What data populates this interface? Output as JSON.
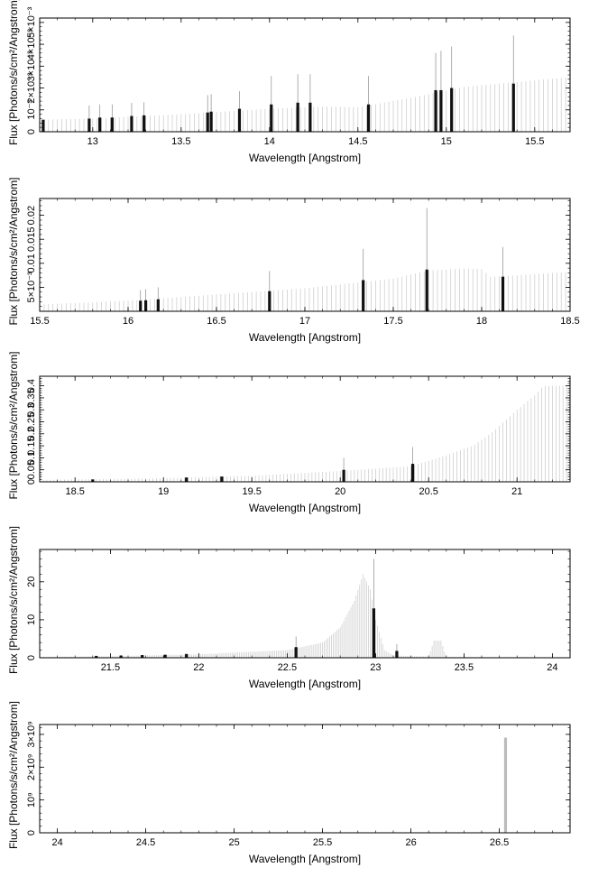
{
  "chart_data": [
    {
      "type": "bar",
      "xlabel": "Wavelength [Angstrom]",
      "ylabel": "Flux [Photons/s/cm²/Angstrom]",
      "xlim": [
        12.7,
        15.7
      ],
      "ylim": [
        0,
        0.0052
      ],
      "xticks": [
        {
          "value": 13,
          "label": "13"
        },
        {
          "value": 13.5,
          "label": "13.5"
        },
        {
          "value": 14,
          "label": "14"
        },
        {
          "value": 14.5,
          "label": "14.5"
        },
        {
          "value": 15,
          "label": "15"
        },
        {
          "value": 15.5,
          "label": "15.5"
        }
      ],
      "yticks": [
        {
          "value": 0,
          "label": "0"
        },
        {
          "value": 0.001,
          "label": "10⁻³"
        },
        {
          "value": 0.002,
          "label": "2×10⁻³"
        },
        {
          "value": 0.003,
          "label": "3×10⁻³"
        },
        {
          "value": 0.004,
          "label": "4×10⁻³"
        },
        {
          "value": 0.005,
          "label": "5×10⁻³"
        }
      ],
      "continuum": {
        "step": 0.025,
        "points": [
          [
            12.7,
            0.00055
          ],
          [
            13.0,
            0.0006
          ],
          [
            13.5,
            0.0008
          ],
          [
            14.0,
            0.00105
          ],
          [
            14.3,
            0.00115
          ],
          [
            14.5,
            0.00112
          ],
          [
            14.8,
            0.00155
          ],
          [
            15.1,
            0.00205
          ],
          [
            15.7,
            0.0025
          ]
        ]
      },
      "lines": [
        {
          "x": 12.72,
          "y": 0.00055,
          "err": 0.0
        },
        {
          "x": 12.98,
          "y": 0.0006,
          "err": 0.0006
        },
        {
          "x": 13.04,
          "y": 0.00065,
          "err": 0.0006
        },
        {
          "x": 13.11,
          "y": 0.00065,
          "err": 0.0006
        },
        {
          "x": 13.22,
          "y": 0.00072,
          "err": 0.0006
        },
        {
          "x": 13.29,
          "y": 0.00075,
          "err": 0.0006
        },
        {
          "x": 13.65,
          "y": 0.00088,
          "err": 0.0008
        },
        {
          "x": 13.67,
          "y": 0.00092,
          "err": 0.0008
        },
        {
          "x": 13.83,
          "y": 0.00105,
          "err": 0.0008
        },
        {
          "x": 14.01,
          "y": 0.00125,
          "err": 0.0013
        },
        {
          "x": 14.16,
          "y": 0.00133,
          "err": 0.0013
        },
        {
          "x": 14.23,
          "y": 0.00133,
          "err": 0.0013
        },
        {
          "x": 14.56,
          "y": 0.00125,
          "err": 0.0013
        },
        {
          "x": 14.94,
          "y": 0.0019,
          "err": 0.0017
        },
        {
          "x": 14.97,
          "y": 0.0019,
          "err": 0.0018
        },
        {
          "x": 15.03,
          "y": 0.002,
          "err": 0.0019
        },
        {
          "x": 15.38,
          "y": 0.0022,
          "err": 0.0022
        }
      ]
    },
    {
      "type": "bar",
      "xlabel": "Wavelength [Angstrom]",
      "ylabel": "Flux [Photons/s/cm²/Angstrom]",
      "xlim": [
        15.5,
        18.5
      ],
      "ylim": [
        0,
        0.0235
      ],
      "xticks": [
        {
          "value": 15.5,
          "label": "15.5"
        },
        {
          "value": 16,
          "label": "16"
        },
        {
          "value": 16.5,
          "label": "16.5"
        },
        {
          "value": 17,
          "label": "17"
        },
        {
          "value": 17.5,
          "label": "17.5"
        },
        {
          "value": 18,
          "label": "18"
        },
        {
          "value": 18.5,
          "label": "18.5"
        }
      ],
      "yticks": [
        {
          "value": 0.005,
          "label": "5×10⁻³"
        },
        {
          "value": 0.01,
          "label": "0.01"
        },
        {
          "value": 0.015,
          "label": "0.015"
        },
        {
          "value": 0.02,
          "label": "0.02"
        }
      ],
      "continuum": {
        "step": 0.025,
        "points": [
          [
            15.5,
            0.0014
          ],
          [
            16.0,
            0.0022
          ],
          [
            16.5,
            0.0035
          ],
          [
            17.0,
            0.0048
          ],
          [
            17.5,
            0.0068
          ],
          [
            17.7,
            0.0085
          ],
          [
            17.9,
            0.0089
          ],
          [
            18.0,
            0.0088
          ],
          [
            18.05,
            0.0072
          ],
          [
            18.15,
            0.0074
          ],
          [
            18.5,
            0.0082
          ]
        ]
      },
      "lines": [
        {
          "x": 16.07,
          "y": 0.0022,
          "err": 0.0022
        },
        {
          "x": 16.1,
          "y": 0.0023,
          "err": 0.0023
        },
        {
          "x": 16.17,
          "y": 0.0025,
          "err": 0.0025
        },
        {
          "x": 16.8,
          "y": 0.0042,
          "err": 0.0042
        },
        {
          "x": 17.33,
          "y": 0.0065,
          "err": 0.0065
        },
        {
          "x": 17.69,
          "y": 0.0087,
          "err": 0.0128
        },
        {
          "x": 18.12,
          "y": 0.0072,
          "err": 0.0062
        }
      ]
    },
    {
      "type": "bar",
      "xlabel": "Wavelength [Angstrom]",
      "ylabel": "Flux [Photons/s/cm²/Angstrom]",
      "xlim": [
        18.3,
        21.3
      ],
      "ylim": [
        0,
        0.44
      ],
      "xticks": [
        {
          "value": 18.5,
          "label": "18.5"
        },
        {
          "value": 19,
          "label": "19"
        },
        {
          "value": 19.5,
          "label": "19.5"
        },
        {
          "value": 20,
          "label": "20"
        },
        {
          "value": 20.5,
          "label": "20.5"
        },
        {
          "value": 21,
          "label": "21"
        }
      ],
      "yticks": [
        {
          "value": 0,
          "label": "0"
        },
        {
          "value": 0.05,
          "label": "0.05"
        },
        {
          "value": 0.1,
          "label": "0.1"
        },
        {
          "value": 0.15,
          "label": "0.15"
        },
        {
          "value": 0.2,
          "label": "0.2"
        },
        {
          "value": 0.25,
          "label": "0.25"
        },
        {
          "value": 0.3,
          "label": "0.3"
        },
        {
          "value": 0.35,
          "label": "0.35"
        },
        {
          "value": 0.4,
          "label": "0.4"
        }
      ],
      "continuum": {
        "step": 0.02,
        "points": [
          [
            18.3,
            0.008
          ],
          [
            19.0,
            0.015
          ],
          [
            19.5,
            0.025
          ],
          [
            20.0,
            0.045
          ],
          [
            20.4,
            0.065
          ],
          [
            20.6,
            0.11
          ],
          [
            20.75,
            0.15
          ],
          [
            20.85,
            0.2
          ],
          [
            21.0,
            0.3
          ],
          [
            21.1,
            0.36
          ],
          [
            21.15,
            0.4
          ],
          [
            21.3,
            0.4
          ]
        ]
      },
      "lines": [
        {
          "x": 18.6,
          "y": 0.01,
          "err": 0.0
        },
        {
          "x": 19.13,
          "y": 0.018,
          "err": 0.0
        },
        {
          "x": 19.33,
          "y": 0.022,
          "err": 0.0
        },
        {
          "x": 20.02,
          "y": 0.05,
          "err": 0.05
        },
        {
          "x": 20.41,
          "y": 0.075,
          "err": 0.07
        }
      ]
    },
    {
      "type": "bar",
      "xlabel": "Wavelength [Angstrom]",
      "ylabel": "Flux [Photons/s/cm²/Angstrom]",
      "xlim": [
        21.1,
        24.1
      ],
      "ylim": [
        0,
        28.5
      ],
      "xticks": [
        {
          "value": 21.5,
          "label": "21.5"
        },
        {
          "value": 22,
          "label": "22"
        },
        {
          "value": 22.5,
          "label": "22.5"
        },
        {
          "value": 23,
          "label": "23"
        },
        {
          "value": 23.5,
          "label": "23.5"
        },
        {
          "value": 24,
          "label": "24"
        }
      ],
      "yticks": [
        {
          "value": 0,
          "label": "0"
        },
        {
          "value": 10,
          "label": "10"
        },
        {
          "value": 20,
          "label": "20"
        }
      ],
      "continuum": {
        "step": 0.01,
        "points": [
          [
            21.1,
            0.2
          ],
          [
            21.5,
            0.4
          ],
          [
            22.0,
            0.9
          ],
          [
            22.5,
            2.0
          ],
          [
            22.7,
            4.0
          ],
          [
            22.8,
            8.0
          ],
          [
            22.88,
            15.0
          ],
          [
            22.93,
            22.0
          ],
          [
            22.97,
            18.0
          ],
          [
            23.0,
            10.0
          ],
          [
            23.05,
            2.0
          ],
          [
            23.1,
            0.6
          ],
          [
            23.3,
            0.3
          ],
          [
            23.33,
            4.5
          ],
          [
            23.37,
            4.5
          ],
          [
            23.4,
            0.2
          ],
          [
            24.1,
            0.1
          ]
        ]
      },
      "lines": [
        {
          "x": 21.42,
          "y": 0.5,
          "err": 0.0
        },
        {
          "x": 21.56,
          "y": 0.6,
          "err": 0.0
        },
        {
          "x": 21.68,
          "y": 0.7,
          "err": 0.0
        },
        {
          "x": 21.81,
          "y": 0.8,
          "err": 0.0
        },
        {
          "x": 21.93,
          "y": 1.0,
          "err": 0.0
        },
        {
          "x": 22.55,
          "y": 2.8,
          "err": 2.8
        },
        {
          "x": 22.99,
          "y": 13.0,
          "err": 13.0
        },
        {
          "x": 23.12,
          "y": 1.8,
          "err": 1.8
        }
      ]
    },
    {
      "type": "bar",
      "xlabel": "Wavelength [Angstrom]",
      "ylabel": "Flux [Photons/s/cm²/Angstrom]",
      "xlim": [
        23.9,
        26.9
      ],
      "ylim": [
        0,
        3300000000
      ],
      "xticks": [
        {
          "value": 24,
          "label": "24"
        },
        {
          "value": 24.5,
          "label": "24.5"
        },
        {
          "value": 25,
          "label": "25"
        },
        {
          "value": 25.5,
          "label": "25.5"
        },
        {
          "value": 26,
          "label": "26"
        },
        {
          "value": 26.5,
          "label": "26.5"
        }
      ],
      "yticks": [
        {
          "value": 0,
          "label": "0"
        },
        {
          "value": 1000000000,
          "label": "10⁹"
        },
        {
          "value": 2000000000,
          "label": "2×10⁹"
        },
        {
          "value": 3000000000,
          "label": "3×10⁹"
        }
      ],
      "continuum": {
        "step": 0.025,
        "points": [
          [
            23.9,
            0
          ],
          [
            26.9,
            0
          ]
        ]
      },
      "lines": [
        {
          "x": 26.53,
          "y": 0,
          "err": 0
        },
        {
          "x": 26.535,
          "y": 2900000000,
          "err": 0
        }
      ]
    }
  ]
}
